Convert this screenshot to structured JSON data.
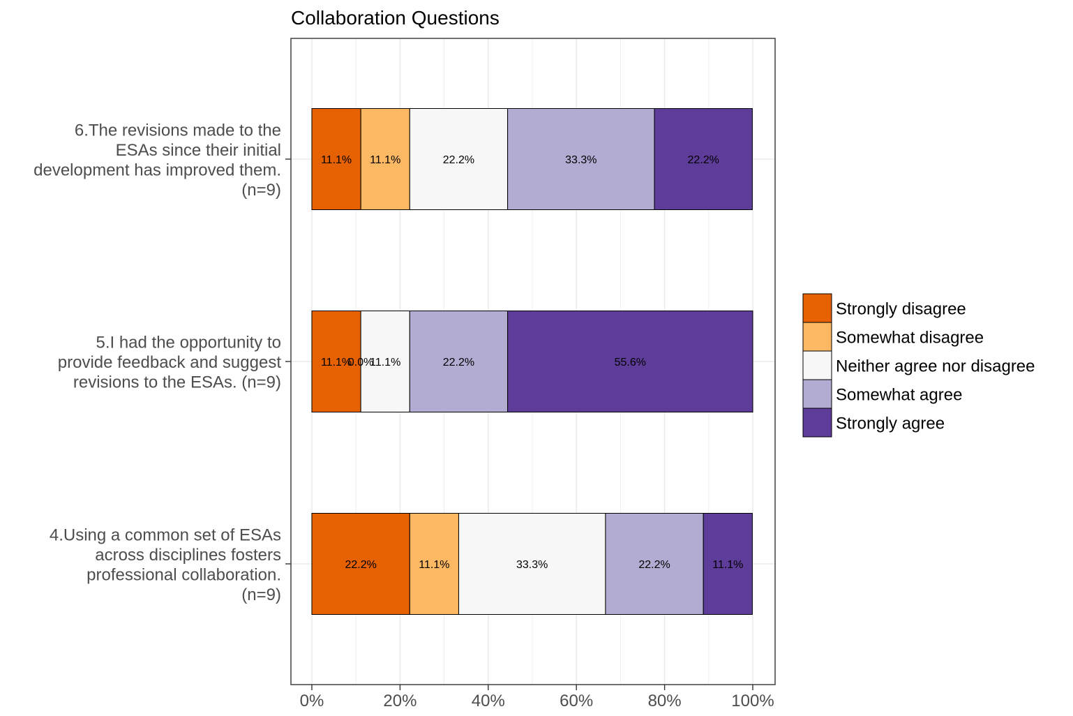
{
  "chart_data": {
    "type": "bar",
    "orientation": "horizontal",
    "stacked": "percent",
    "title": "Collaboration Questions",
    "xlabel": "",
    "ylabel": "",
    "xlim": [
      0,
      100
    ],
    "x_ticks": [
      "0%",
      "20%",
      "40%",
      "60%",
      "80%",
      "100%"
    ],
    "grid": true,
    "legend_position": "right",
    "categories": [
      [
        "6.The revisions made to the",
        "ESAs since their initial",
        "development has improved them.",
        "(n=9)"
      ],
      [
        "5.I had the opportunity to",
        "provide feedback and suggest",
        "revisions to the ESAs. (n=9)"
      ],
      [
        "4.Using a common set of ESAs",
        "across disciplines fosters",
        "professional collaboration.",
        "(n=9)"
      ]
    ],
    "series": [
      {
        "name": "Strongly disagree",
        "color": "#e66101",
        "values": [
          11.1,
          11.1,
          22.2
        ],
        "labels": [
          "11.1%",
          "11.1%",
          "22.2%"
        ]
      },
      {
        "name": "Somewhat disagree",
        "color": "#fdb863",
        "values": [
          11.1,
          0.0,
          11.1
        ],
        "labels": [
          "11.1%",
          "0.0%",
          "11.1%"
        ]
      },
      {
        "name": "Neither agree nor disagree",
        "color": "#f7f7f7",
        "values": [
          22.2,
          11.1,
          33.3
        ],
        "labels": [
          "22.2%",
          "11.1%",
          "33.3%"
        ]
      },
      {
        "name": "Somewhat agree",
        "color": "#b2abd2",
        "values": [
          33.3,
          22.2,
          22.2
        ],
        "labels": [
          "33.3%",
          "22.2%",
          "22.2%"
        ]
      },
      {
        "name": "Strongly agree",
        "color": "#5e3c99",
        "values": [
          22.2,
          55.6,
          11.1
        ],
        "labels": [
          "22.2%",
          "55.6%",
          "11.1%"
        ]
      }
    ]
  }
}
